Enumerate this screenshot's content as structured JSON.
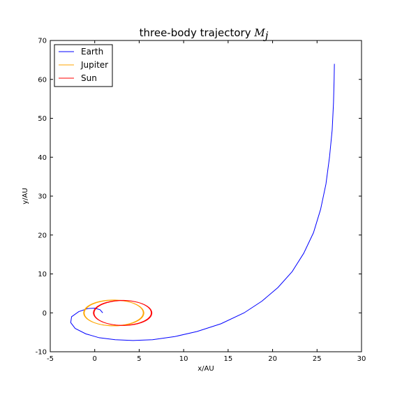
{
  "chart_data": {
    "type": "line",
    "title": "three-body trajectory ",
    "title_math": "M",
    "title_math_sub": "j",
    "xlabel": "x/AU",
    "ylabel": "y/AU",
    "xlim": [
      -5,
      30
    ],
    "ylim": [
      -10,
      70
    ],
    "xticks": [
      -5,
      0,
      5,
      10,
      15,
      20,
      25,
      30
    ],
    "yticks": [
      -10,
      0,
      10,
      20,
      30,
      40,
      50,
      60,
      70
    ],
    "grid": false,
    "legend_position": "top-left",
    "series": [
      {
        "name": "Earth",
        "color": "#0000ff",
        "x": [
          0.9,
          0.6,
          0.0,
          -0.8,
          -1.8,
          -2.6,
          -2.7,
          -2.2,
          -1.0,
          0.5,
          2.3,
          4.3,
          6.5,
          9.0,
          11.5,
          14.2,
          16.8,
          18.8,
          20.6,
          22.2,
          23.5,
          24.6,
          25.4,
          26.0,
          26.4,
          26.7,
          26.85,
          26.92,
          26.95
        ],
        "y": [
          0.0,
          0.8,
          1.2,
          1.1,
          0.3,
          -1.0,
          -2.5,
          -4.0,
          -5.4,
          -6.4,
          -6.9,
          -7.1,
          -6.9,
          -6.1,
          -4.8,
          -2.8,
          0.0,
          3.0,
          6.5,
          10.6,
          15.3,
          20.6,
          26.6,
          33.1,
          40.0,
          47.0,
          54.0,
          60.0,
          64.0
        ]
      },
      {
        "name": "Jupiter",
        "color": "#ffa500",
        "shape": "ellipse",
        "center": [
          2.1,
          0.0
        ],
        "radii": [
          3.35,
          3.3
        ]
      },
      {
        "name": "Sun",
        "color": "#ff0000",
        "shape": "ellipse",
        "center": [
          3.1,
          0.0
        ],
        "radii": [
          3.25,
          3.2
        ]
      }
    ]
  }
}
